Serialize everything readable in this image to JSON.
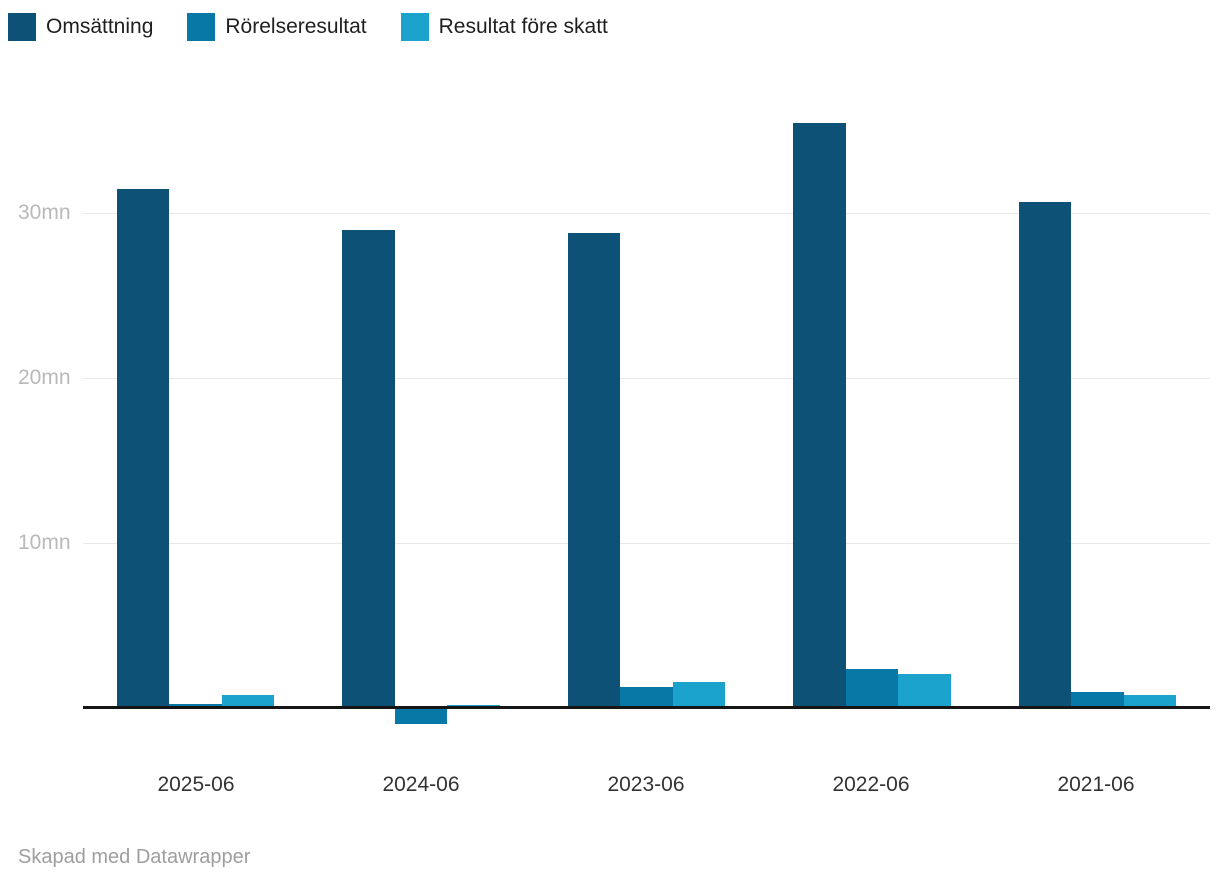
{
  "chart_data": {
    "type": "bar",
    "title": "",
    "categories": [
      "2025-06",
      "2024-06",
      "2023-06",
      "2022-06",
      "2021-06"
    ],
    "series": [
      {
        "name": "Omsättning",
        "color": "#0d5276",
        "values": [
          31.4,
          28.9,
          28.7,
          35.4,
          30.6
        ]
      },
      {
        "name": "Rörelseresultat",
        "color": "#0879a6",
        "values": [
          0.2,
          -0.9,
          1.2,
          2.3,
          0.9
        ]
      },
      {
        "name": "Resultat före skatt",
        "color": "#1ba3ce",
        "values": [
          0.7,
          0.1,
          1.5,
          2.0,
          0.7
        ]
      }
    ],
    "unit": "mn",
    "yticks": [
      {
        "value": 10,
        "label": "10mn"
      },
      {
        "value": 20,
        "label": "20mn"
      },
      {
        "value": 30,
        "label": "30mn"
      }
    ],
    "ylim": [
      -1.5,
      36.5
    ],
    "grid": "horizontal",
    "legend_position": "top-left",
    "zero_axis_color": "#161616",
    "gridline_color": "#e8e8e8"
  },
  "footer": {
    "credit": "Skapad med Datawrapper"
  }
}
